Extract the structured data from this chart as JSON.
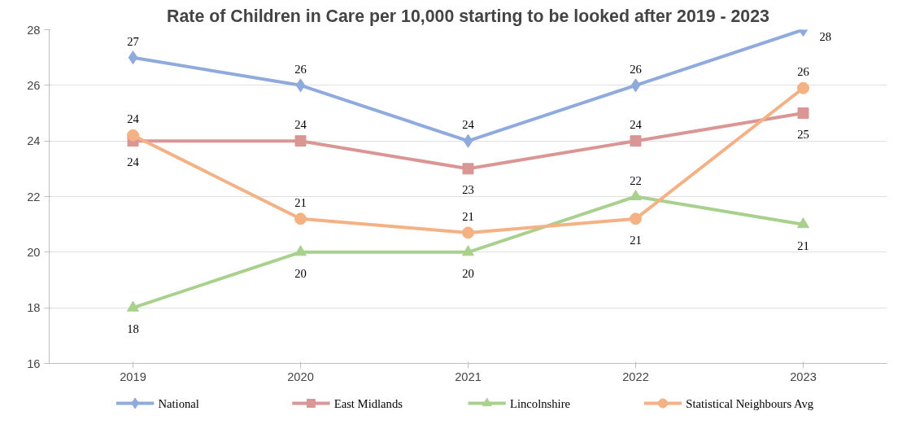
{
  "chart_data": {
    "type": "line",
    "title": "Rate of Children in Care per 10,000 starting to be looked after 2019 - 2023",
    "categories": [
      "2019",
      "2020",
      "2021",
      "2022",
      "2023"
    ],
    "series": [
      {
        "name": "National",
        "color": "#8faadc",
        "marker": "diamond",
        "values": [
          27,
          26,
          24,
          26,
          28
        ],
        "value_labels": [
          "27",
          "26",
          "24",
          "26",
          "28"
        ]
      },
      {
        "name": "East Midlands",
        "color": "#d99694",
        "marker": "square",
        "values": [
          24,
          24,
          23,
          24,
          25
        ],
        "value_labels": [
          "24",
          "24",
          "23",
          "24",
          "25"
        ]
      },
      {
        "name": "Lincolnshire",
        "color": "#a9d18e",
        "marker": "triangle",
        "values": [
          18,
          20,
          20,
          22,
          21
        ],
        "value_labels": [
          "18",
          "20",
          "20",
          "22",
          "21"
        ]
      },
      {
        "name": "Statistical Neighbours Avg",
        "color": "#f4b183",
        "marker": "circle",
        "values": [
          24.2,
          21.2,
          20.7,
          21.2,
          25.9
        ],
        "value_labels": [
          "24",
          "21",
          "21",
          "21",
          "26"
        ]
      }
    ],
    "ylim": [
      16,
      28
    ],
    "yticks": [
      16,
      18,
      20,
      22,
      24,
      26,
      28
    ],
    "grid": "y",
    "legend": "bottom",
    "line_style": "solid"
  }
}
